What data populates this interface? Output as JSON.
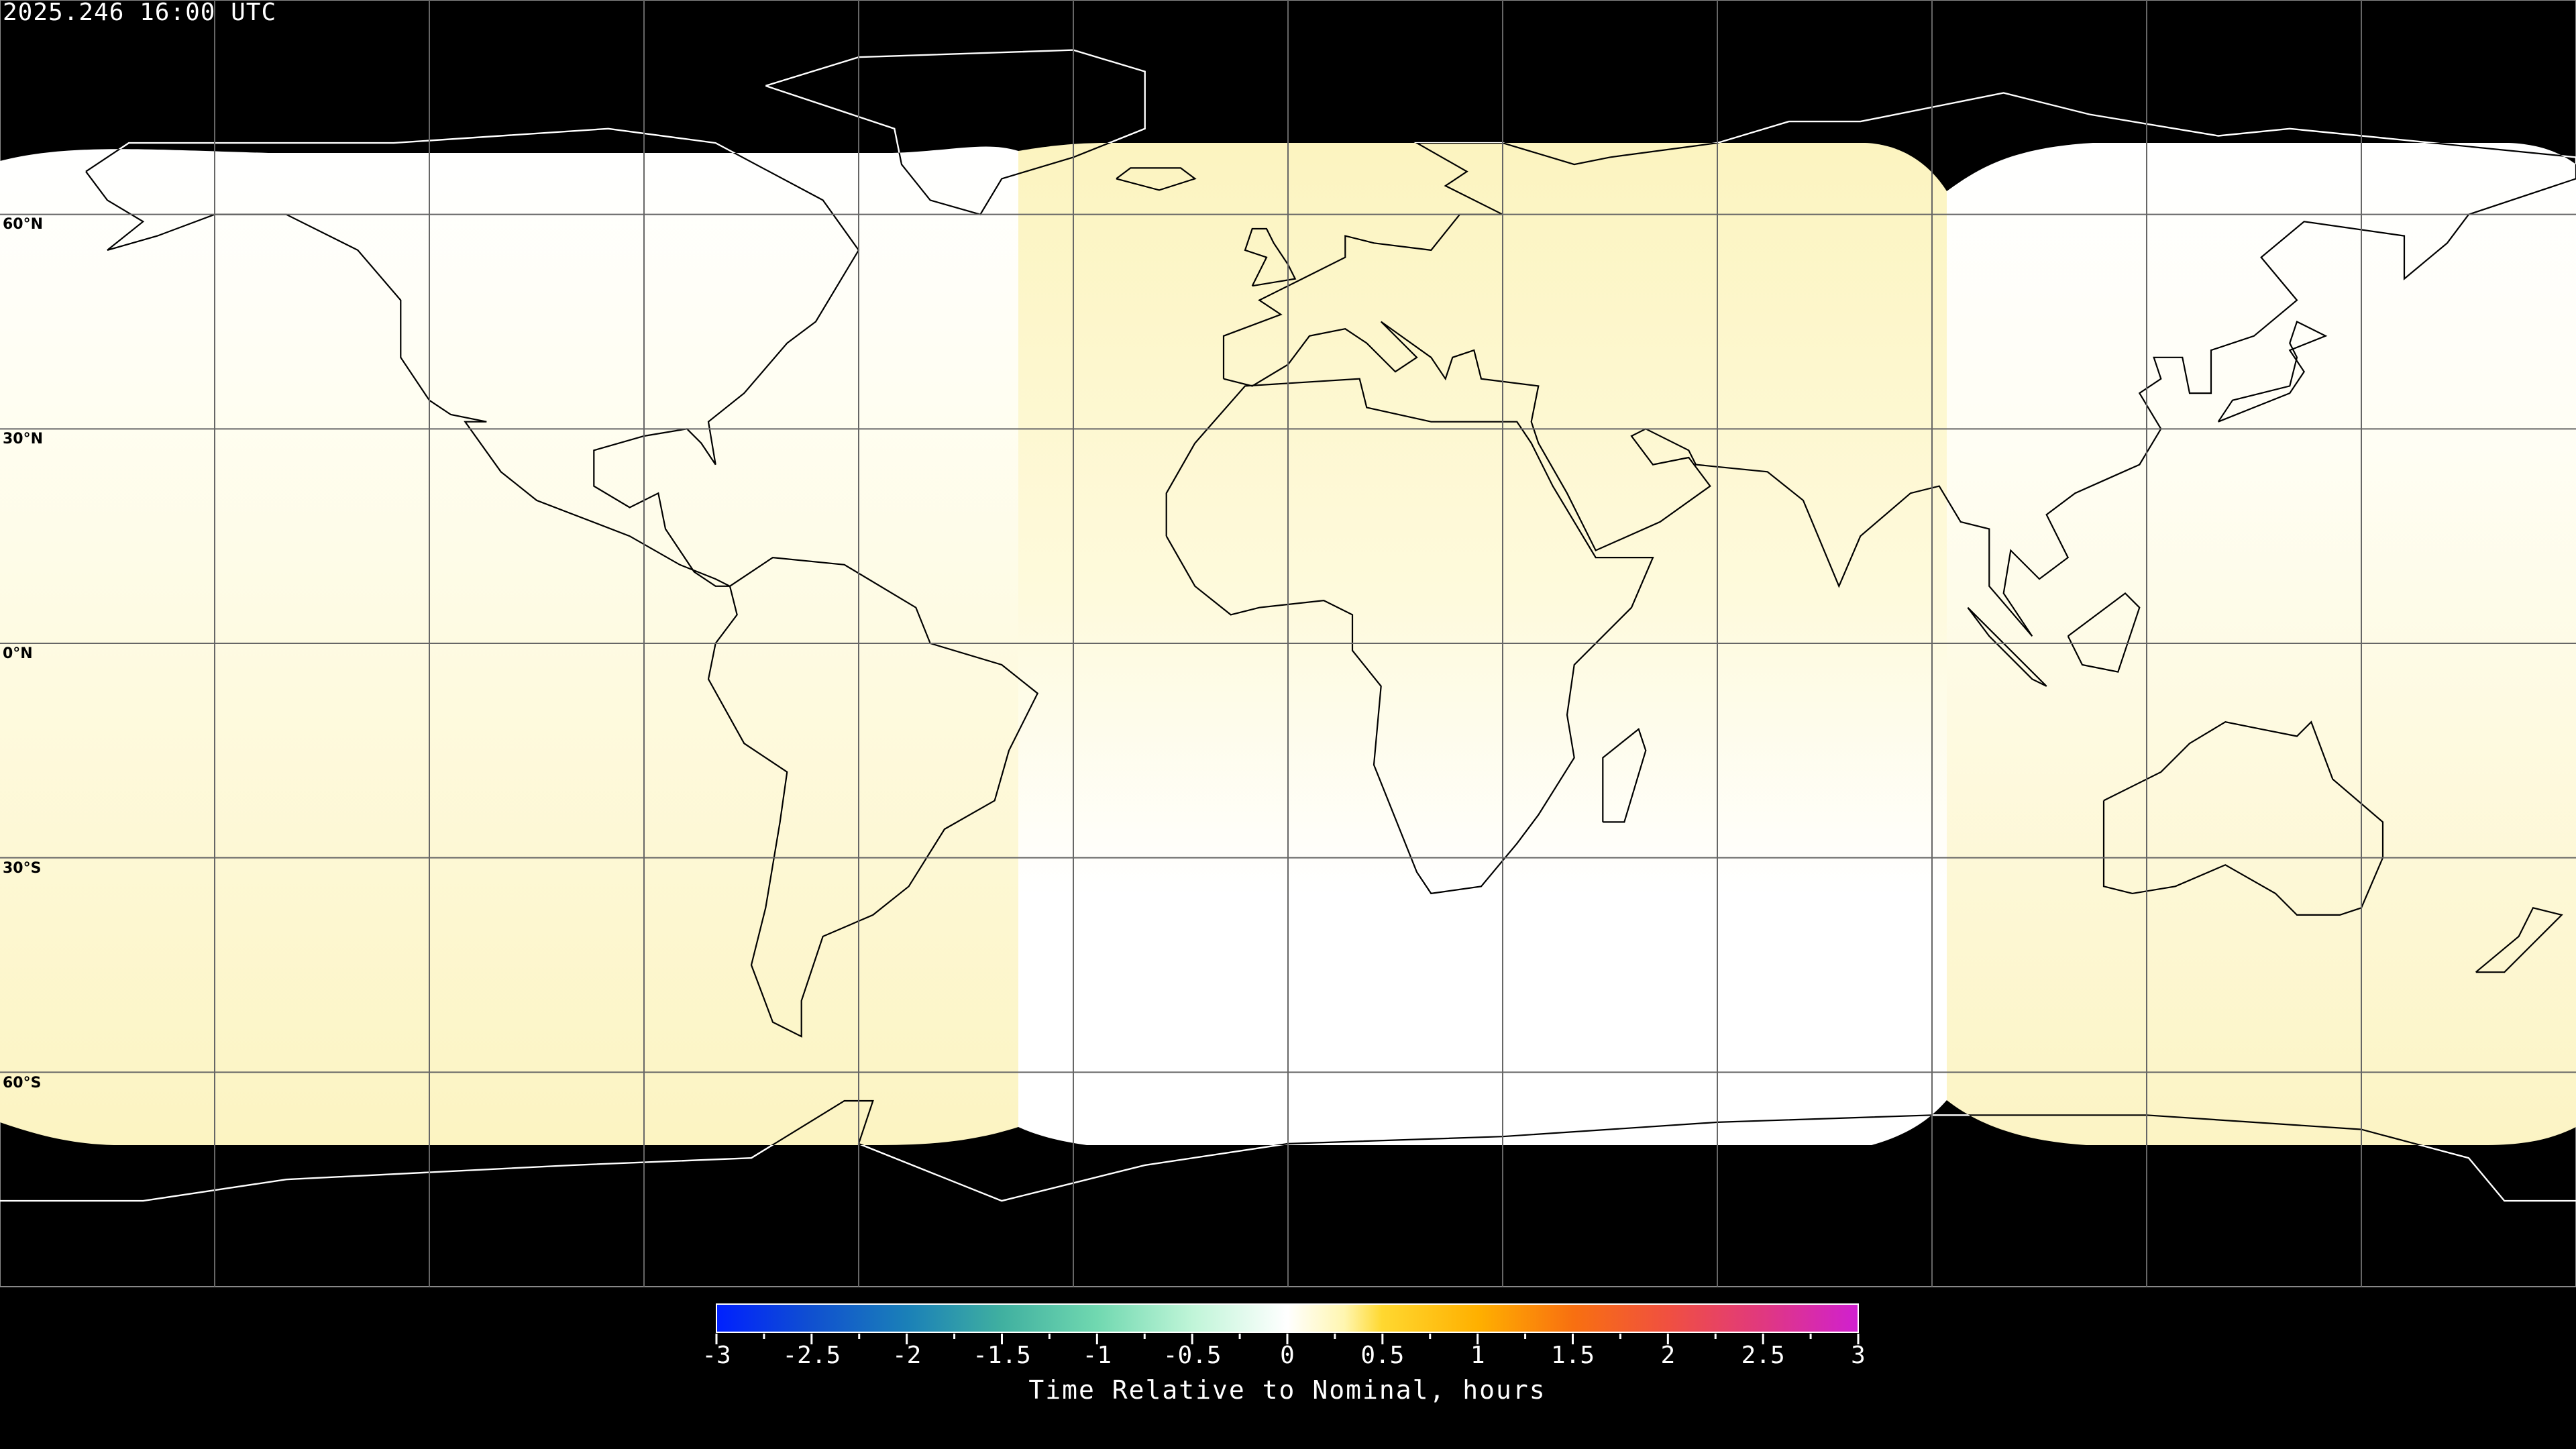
{
  "title": "2025.246 16:00 UTC",
  "lat_labels": [
    "60°N",
    "30°N",
    "0°N",
    "30°S",
    "60°S"
  ],
  "colorbar": {
    "label": "Time Relative to Nominal, hours",
    "range": [
      -3,
      3
    ],
    "ticks": [
      "-3",
      "-2.5",
      "-2",
      "-1.5",
      "-1",
      "-0.5",
      "0",
      "0.5",
      "1",
      "1.5",
      "2",
      "2.5",
      "3"
    ],
    "colors": [
      "#0020ff",
      "#1a80b8",
      "#70d8b0",
      "#ffffff",
      "#ffd830",
      "#f87010",
      "#d020d0"
    ]
  },
  "coverage_colors": {
    "white": "#ffffff",
    "pale_yellow": "#fcf4c2"
  },
  "grid": {
    "lon_step_deg": 30,
    "lat_step_deg": 30
  }
}
